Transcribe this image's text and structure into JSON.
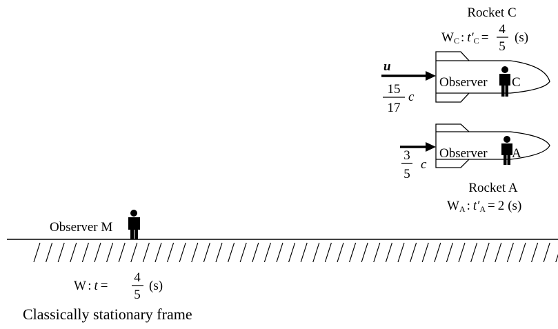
{
  "rocket_c": {
    "title": "Rocket C",
    "frame": {
      "w": "W",
      "w_sub": "C",
      "sep": ":",
      "t": "t′",
      "t_sub": "C",
      "eq": "=",
      "num": "4",
      "den": "5",
      "unit": "(s)"
    },
    "velocity_symbol": "u",
    "speed": {
      "num": "15",
      "den": "17",
      "c": "c"
    },
    "observer": "Observer",
    "observer_id": "C"
  },
  "rocket_a": {
    "title": "Rocket A",
    "frame": {
      "w": "W",
      "w_sub": "A",
      "sep": ":",
      "t": "t′",
      "t_sub": "A",
      "eq": "=",
      "value": "2",
      "unit": "(s)"
    },
    "speed": {
      "num": "3",
      "den": "5",
      "c": "c"
    },
    "observer": "Observer",
    "observer_id": "A"
  },
  "ground": {
    "observer": "Observer M",
    "frame": {
      "w": "W",
      "sep": ":",
      "t": "t",
      "eq": "=",
      "num": "4",
      "den": "5",
      "unit": "(s)"
    },
    "caption": "Classically stationary frame"
  }
}
